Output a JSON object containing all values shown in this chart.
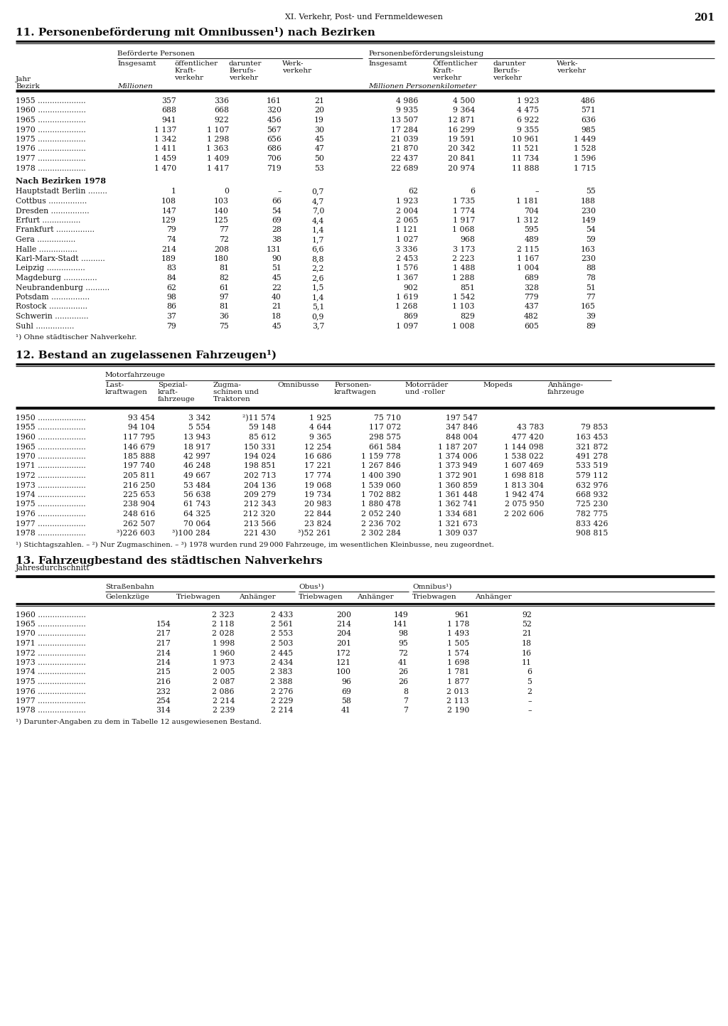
{
  "page_header": "XI. Verkehr, Post- und Fernmeldewesen",
  "page_number": "201",
  "bg_color": "#ffffff",
  "text_color": "#1a1a1a",
  "table11": {
    "title": "11. Personenbeförderung mit Omnibussen¹) nach Bezirken",
    "row_label": "Jahr\nBezirk",
    "group_left": "Beförderte Personen",
    "group_right": "Personenbeförderungsleistung",
    "sub_left": [
      "Insgesamt",
      "öffentlicher\nKraft-\nverkehr",
      "darunter\nBerufs-\nverkehr",
      "Werk-\nverkehr"
    ],
    "sub_right": [
      "Insgesamt",
      "Öffentlicher\nKraft-\nverkehr",
      "darunter\nBerufs-\nverkehr",
      "Werk-\nverkehr"
    ],
    "unit_left": "Millionen",
    "unit_right": "Millionen Personenkilometer",
    "years": [
      "1955",
      "1960",
      "1965",
      "1970",
      "1975",
      "1976",
      "1977",
      "1978"
    ],
    "year_data": [
      [
        "357",
        "336",
        "161",
        "21",
        "4 986",
        "4 500",
        "1 923",
        "486"
      ],
      [
        "688",
        "668",
        "320",
        "20",
        "9 935",
        "9 364",
        "4 475",
        "571"
      ],
      [
        "941",
        "922",
        "456",
        "19",
        "13 507",
        "12 871",
        "6 922",
        "636"
      ],
      [
        "1 137",
        "1 107",
        "567",
        "30",
        "17 284",
        "16 299",
        "9 355",
        "985"
      ],
      [
        "1 342",
        "1 298",
        "656",
        "45",
        "21 039",
        "19 591",
        "10 961",
        "1 449"
      ],
      [
        "1 411",
        "1 363",
        "686",
        "47",
        "21 870",
        "20 342",
        "11 521",
        "1 528"
      ],
      [
        "1 459",
        "1 409",
        "706",
        "50",
        "22 437",
        "20 841",
        "11 734",
        "1 596"
      ],
      [
        "1 470",
        "1 417",
        "719",
        "53",
        "22 689",
        "20 974",
        "11 888",
        "1 715"
      ]
    ],
    "bezirk_header": "Nach Bezirken 1978",
    "bezirke": [
      "Hauptstadt Berlin",
      "Cottbus",
      "Dresden",
      "Erfurt",
      "Frankfurt",
      "Gera",
      "Halle",
      "Karl-Marx-Stadt",
      "Leipzig",
      "Magdeburg",
      "Neubrandenburg",
      "Potsdam",
      "Rostock",
      "Schwerin",
      "Suhl"
    ],
    "bezirk_dots": [
      8,
      16,
      16,
      16,
      16,
      16,
      16,
      10,
      16,
      14,
      10,
      16,
      16,
      14,
      16
    ],
    "bezirk_data": [
      [
        "1",
        "0",
        "–",
        "0,7",
        "62",
        "6",
        "–",
        "55"
      ],
      [
        "108",
        "103",
        "66",
        "4,7",
        "1 923",
        "1 735",
        "1 181",
        "188"
      ],
      [
        "147",
        "140",
        "54",
        "7,0",
        "2 004",
        "1 774",
        "704",
        "230"
      ],
      [
        "129",
        "125",
        "69",
        "4,4",
        "2 065",
        "1 917",
        "1 312",
        "149"
      ],
      [
        "79",
        "77",
        "28",
        "1,4",
        "1 121",
        "1 068",
        "595",
        "54"
      ],
      [
        "74",
        "72",
        "38",
        "1,7",
        "1 027",
        "968",
        "489",
        "59"
      ],
      [
        "214",
        "208",
        "131",
        "6,6",
        "3 336",
        "3 173",
        "2 115",
        "163"
      ],
      [
        "189",
        "180",
        "90",
        "8,8",
        "2 453",
        "2 223",
        "1 167",
        "230"
      ],
      [
        "83",
        "81",
        "51",
        "2,2",
        "1 576",
        "1 488",
        "1 004",
        "88"
      ],
      [
        "84",
        "82",
        "45",
        "2,6",
        "1 367",
        "1 288",
        "689",
        "78"
      ],
      [
        "62",
        "61",
        "22",
        "1,5",
        "902",
        "851",
        "328",
        "51"
      ],
      [
        "98",
        "97",
        "40",
        "1,4",
        "1 619",
        "1 542",
        "779",
        "77"
      ],
      [
        "86",
        "81",
        "21",
        "5,1",
        "1 268",
        "1 103",
        "437",
        "165"
      ],
      [
        "37",
        "36",
        "18",
        "0,9",
        "869",
        "829",
        "482",
        "39"
      ],
      [
        "79",
        "75",
        "45",
        "3,7",
        "1 097",
        "1 008",
        "605",
        "89"
      ]
    ],
    "footnote": "¹) Ohne städtischer Nahverkehr."
  },
  "table12": {
    "title": "12. Bestand an zugelassenen Fahrzeugen¹)",
    "col_header_group": "Motorfahrzeuge",
    "col_headers": [
      "Last-\nkraftwagen",
      "Spezial-\nkraft-\nfahrzeuge",
      "Zugma-\nschinen und\nTraktoren",
      "Omnibusse",
      "Personen-\nkraftwagen",
      "Motorräder\nund -roller",
      "Mopeds"
    ],
    "col_header_last": "Anhänge-\nfahrzeuge",
    "years": [
      "1950",
      "1955",
      "1960",
      "1965",
      "1970",
      "1971",
      "1972",
      "1973",
      "1974",
      "1975",
      "1976",
      "1977",
      "1978"
    ],
    "year_data": [
      [
        "93 454",
        "3 342",
        "²)11 574",
        "1 925",
        "75 710",
        "197 547",
        "",
        ""
      ],
      [
        "94 104",
        "5 554",
        "59 148",
        "4 644",
        "117 072",
        "347 846",
        "43 783",
        "79 853"
      ],
      [
        "117 795",
        "13 943",
        "85 612",
        "9 365",
        "298 575",
        "848 004",
        "477 420",
        "163 453"
      ],
      [
        "146 679",
        "18 917",
        "150 331",
        "12 254",
        "661 584",
        "1 187 207",
        "1 144 098",
        "321 872"
      ],
      [
        "185 888",
        "42 997",
        "194 024",
        "16 686",
        "1 159 778",
        "1 374 006",
        "1 538 022",
        "491 278"
      ],
      [
        "197 740",
        "46 248",
        "198 851",
        "17 221",
        "1 267 846",
        "1 373 949",
        "1 607 469",
        "533 519"
      ],
      [
        "205 811",
        "49 667",
        "202 713",
        "17 774",
        "1 400 390",
        "1 372 901",
        "1 698 818",
        "579 112"
      ],
      [
        "216 250",
        "53 484",
        "204 136",
        "19 068",
        "1 539 060",
        "1 360 859",
        "1 813 304",
        "632 976"
      ],
      [
        "225 653",
        "56 638",
        "209 279",
        "19 734",
        "1 702 882",
        "1 361 448",
        "1 942 474",
        "668 932"
      ],
      [
        "238 904",
        "61 743",
        "212 343",
        "20 983",
        "1 880 478",
        "1 362 741",
        "2 075 950",
        "725 230"
      ],
      [
        "248 616",
        "64 325",
        "212 320",
        "22 844",
        "2 052 240",
        "1 334 681",
        "2 202 606",
        "782 775"
      ],
      [
        "262 507",
        "70 064",
        "213 566",
        "23 824",
        "2 236 702",
        "1 321 673",
        "",
        "833 426"
      ],
      [
        "³)226 603",
        "³)100 284",
        "221 430",
        "³)52 261",
        "2 302 284",
        "1 309 037",
        "",
        "908 815"
      ]
    ],
    "footnotes": "¹) Stichtagszahlen. – ²) Nur Zugmaschinen. – ³) 1978 wurden rund 29 000 Fahrzeuge, im wesentlichen Kleinbusse, neu zugeordnet."
  },
  "table13": {
    "title": "13. Fahrzeugbestand des städtischen Nahverkehrs",
    "subtitle": "Jahresdurchschnitt",
    "col_groups": [
      "Straßenbahn",
      "Obus¹)",
      "Omnibus¹)"
    ],
    "col_headers": [
      "Gelenkzüge",
      "Triebwagen",
      "Anhänger",
      "Triebwagen",
      "Anhänger",
      "Triebwagen",
      "Anhänger"
    ],
    "years": [
      "1960",
      "1965",
      "1970",
      "1971",
      "1972",
      "1973",
      "1974",
      "1975",
      "1976",
      "1977",
      "1978"
    ],
    "year_data": [
      [
        "",
        "2 323",
        "2 433",
        "200",
        "149",
        "961",
        "92"
      ],
      [
        "154",
        "2 118",
        "2 561",
        "214",
        "141",
        "1 178",
        "52"
      ],
      [
        "217",
        "2 028",
        "2 553",
        "204",
        "98",
        "1 493",
        "21"
      ],
      [
        "217",
        "1 998",
        "2 503",
        "201",
        "95",
        "1 505",
        "18"
      ],
      [
        "214",
        "1 960",
        "2 445",
        "172",
        "72",
        "1 574",
        "16"
      ],
      [
        "214",
        "1 973",
        "2 434",
        "121",
        "41",
        "1 698",
        "11"
      ],
      [
        "215",
        "2 005",
        "2 383",
        "100",
        "26",
        "1 781",
        "6"
      ],
      [
        "216",
        "2 087",
        "2 388",
        "96",
        "26",
        "1 877",
        "5"
      ],
      [
        "232",
        "2 086",
        "2 276",
        "69",
        "8",
        "2 013",
        "2"
      ],
      [
        "254",
        "2 214",
        "2 229",
        "58",
        "7",
        "2 113",
        "–"
      ],
      [
        "314",
        "2 239",
        "2 214",
        "41",
        "7",
        "2 190",
        "–"
      ]
    ],
    "footnote": "¹) Darunter-Angaben zu dem in Tabelle 12 ausgewiesenen Bestand."
  }
}
